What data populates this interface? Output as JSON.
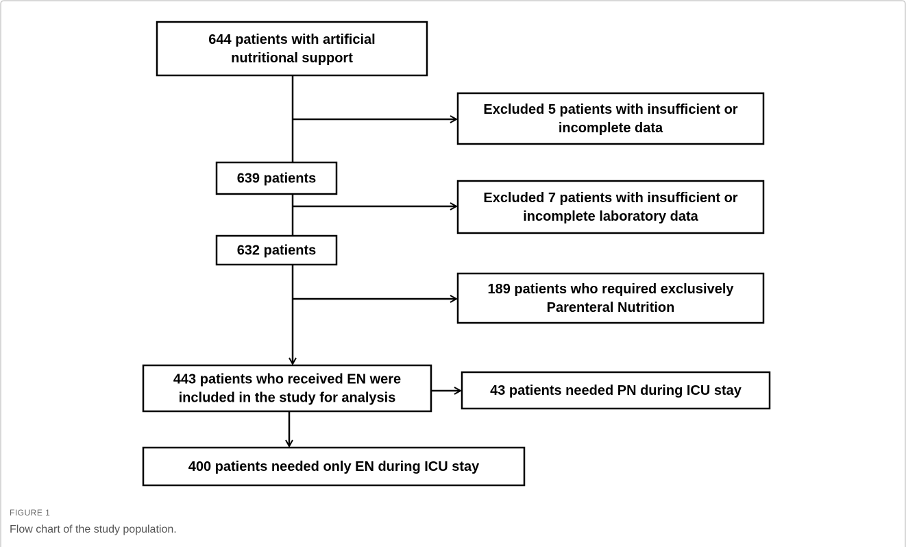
{
  "nodes": [
    {
      "label": [
        "644 patients with artificial",
        "nutritional support"
      ]
    },
    {
      "label": [
        "Excluded 5 patients with insufficient or",
        "incomplete data"
      ]
    },
    {
      "label": [
        "639 patients"
      ]
    },
    {
      "label": [
        "Excluded 7 patients with insufficient or",
        "incomplete laboratory data"
      ]
    },
    {
      "label": [
        "632 patients"
      ]
    },
    {
      "label": [
        "189 patients who required exclusively",
        "Parenteral Nutrition"
      ]
    },
    {
      "label": [
        "443 patients who received EN were",
        "included in the study for analysis"
      ]
    },
    {
      "label": [
        "43 patients needed PN during ICU stay"
      ]
    },
    {
      "label": [
        "400 patients needed only EN during ICU stay"
      ]
    }
  ],
  "caption": {
    "label": "FIGURE 1",
    "text": "Flow chart of the study population."
  }
}
